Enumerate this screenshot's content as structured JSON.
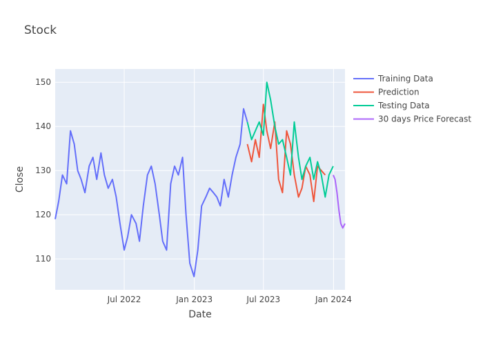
{
  "chart_data": {
    "type": "line",
    "title": "Stock",
    "xlabel": "Date",
    "ylabel": "Close",
    "x_range": [
      "2022-01-01",
      "2024-01-31"
    ],
    "ylim": [
      103,
      153
    ],
    "x_ticks": [
      {
        "label": "Jul 2022",
        "date": "2022-07-01"
      },
      {
        "label": "Jan 2023",
        "date": "2023-01-01"
      },
      {
        "label": "Jul 2023",
        "date": "2023-07-01"
      },
      {
        "label": "Jan 2024",
        "date": "2024-01-01"
      }
    ],
    "y_ticks": [
      110,
      120,
      130,
      140,
      150
    ],
    "grid": true,
    "legend_position": "right",
    "plot_background": "#E5ECF6",
    "series": [
      {
        "name": "Training Data",
        "color": "#636EFA",
        "x": [
          "2022-01-01",
          "2022-01-10",
          "2022-01-20",
          "2022-01-31",
          "2022-02-10",
          "2022-02-20",
          "2022-03-01",
          "2022-03-10",
          "2022-03-20",
          "2022-03-31",
          "2022-04-10",
          "2022-04-20",
          "2022-05-01",
          "2022-05-10",
          "2022-05-20",
          "2022-05-31",
          "2022-06-10",
          "2022-06-20",
          "2022-07-01",
          "2022-07-10",
          "2022-07-20",
          "2022-08-01",
          "2022-08-10",
          "2022-08-20",
          "2022-08-31",
          "2022-09-10",
          "2022-09-20",
          "2022-10-01",
          "2022-10-10",
          "2022-10-20",
          "2022-10-31",
          "2022-11-10",
          "2022-11-20",
          "2022-12-01",
          "2022-12-10",
          "2022-12-20",
          "2022-12-31",
          "2023-01-10",
          "2023-01-20",
          "2023-01-31",
          "2023-02-10",
          "2023-02-20",
          "2023-03-01",
          "2023-03-10",
          "2023-03-20",
          "2023-03-31",
          "2023-04-10",
          "2023-04-20",
          "2023-05-01",
          "2023-05-10",
          "2023-05-20"
        ],
        "values": [
          119,
          123,
          129,
          127,
          139,
          136,
          130,
          128,
          125,
          131,
          133,
          128,
          134,
          129,
          126,
          128,
          124,
          118,
          112,
          115,
          120,
          118,
          114,
          122,
          129,
          131,
          127,
          120,
          114,
          112,
          127,
          131,
          129,
          133,
          120,
          109,
          106,
          112,
          122,
          124,
          126,
          125,
          124,
          122,
          128,
          124,
          129,
          133,
          136,
          144,
          141
        ]
      },
      {
        "name": "Prediction",
        "color": "#EF553B",
        "x": [
          "2023-05-20",
          "2023-05-31",
          "2023-06-10",
          "2023-06-20",
          "2023-07-01",
          "2023-07-10",
          "2023-07-20",
          "2023-07-31",
          "2023-08-10",
          "2023-08-20",
          "2023-08-31",
          "2023-09-10",
          "2023-09-20",
          "2023-10-01",
          "2023-10-10",
          "2023-10-20",
          "2023-10-31",
          "2023-11-10",
          "2023-11-20",
          "2023-11-30",
          "2023-12-10"
        ],
        "values": [
          136,
          132,
          137,
          133,
          145,
          139,
          135,
          141,
          128,
          125,
          139,
          136,
          129,
          124,
          126,
          131,
          129,
          123,
          131,
          130,
          129
        ]
      },
      {
        "name": "Testing Data",
        "color": "#00CC96",
        "x": [
          "2023-05-20",
          "2023-05-31",
          "2023-06-10",
          "2023-06-20",
          "2023-07-01",
          "2023-07-10",
          "2023-07-20",
          "2023-07-31",
          "2023-08-10",
          "2023-08-20",
          "2023-08-31",
          "2023-09-10",
          "2023-09-20",
          "2023-10-01",
          "2023-10-10",
          "2023-10-20",
          "2023-10-31",
          "2023-11-10",
          "2023-11-20",
          "2023-11-30",
          "2023-12-10",
          "2023-12-20",
          "2023-12-31"
        ],
        "values": [
          141,
          137,
          139,
          141,
          138,
          150,
          146,
          140,
          136,
          137,
          133,
          129,
          141,
          133,
          128,
          131,
          133,
          128,
          132,
          129,
          124,
          129,
          131
        ]
      },
      {
        "name": "30 days Price Forecast",
        "color": "#AB63FA",
        "x": [
          "2023-12-31",
          "2024-01-05",
          "2024-01-10",
          "2024-01-15",
          "2024-01-20",
          "2024-01-25",
          "2024-01-31"
        ],
        "values": [
          129,
          128,
          125,
          121,
          118,
          117,
          118
        ]
      }
    ]
  }
}
